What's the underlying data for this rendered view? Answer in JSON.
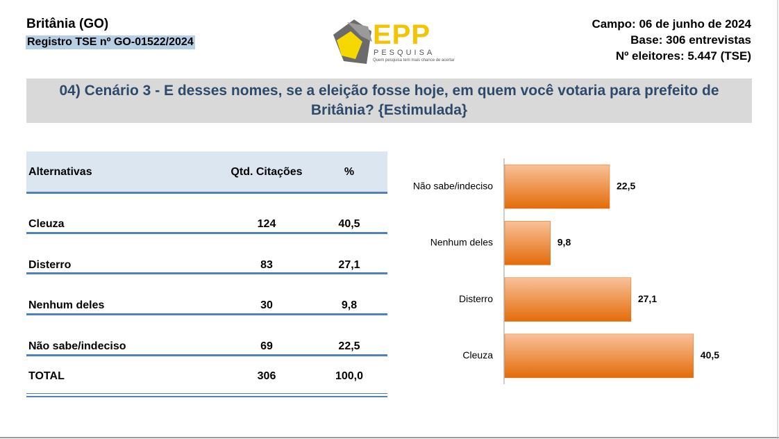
{
  "header": {
    "city": "Britânia (GO)",
    "registry": "Registro TSE nº GO-01522/2024",
    "field": "Campo: 06 de junho de 2024",
    "base": "Base: 306 entrevistas",
    "voters": "Nº eleitores: 5.447 (TSE)"
  },
  "logo": {
    "name": "EPP",
    "sub": "PESQUISA",
    "tagline": "Quem pesquisa tem mais chance de acertar"
  },
  "question": "04) Cenário 3 - E desses nomes, se a eleição fosse hoje, em quem você votaria para prefeito de Britânia? {Estimulada}",
  "table": {
    "headers": [
      "Alternativas",
      "Qtd. Citações",
      "%"
    ],
    "rows": [
      [
        "Cleuza",
        "124",
        "40,5"
      ],
      [
        "Disterro",
        "83",
        "27,1"
      ],
      [
        "Nenhum deles",
        "30",
        "9,8"
      ],
      [
        "Não sabe/indeciso",
        "69",
        "22,5"
      ]
    ],
    "total": [
      "TOTAL",
      "306",
      "100,0"
    ]
  },
  "chart_data": {
    "type": "hbar",
    "categories": [
      "Não sabe/indeciso",
      "Nenhum deles",
      "Disterro",
      "Cleuza"
    ],
    "values": [
      22.5,
      9.8,
      27.1,
      40.5
    ],
    "value_labels": [
      "22,5",
      "9,8",
      "27,1",
      "40,5"
    ],
    "color": "#e36c0a",
    "xlim": [
      0,
      45
    ]
  }
}
